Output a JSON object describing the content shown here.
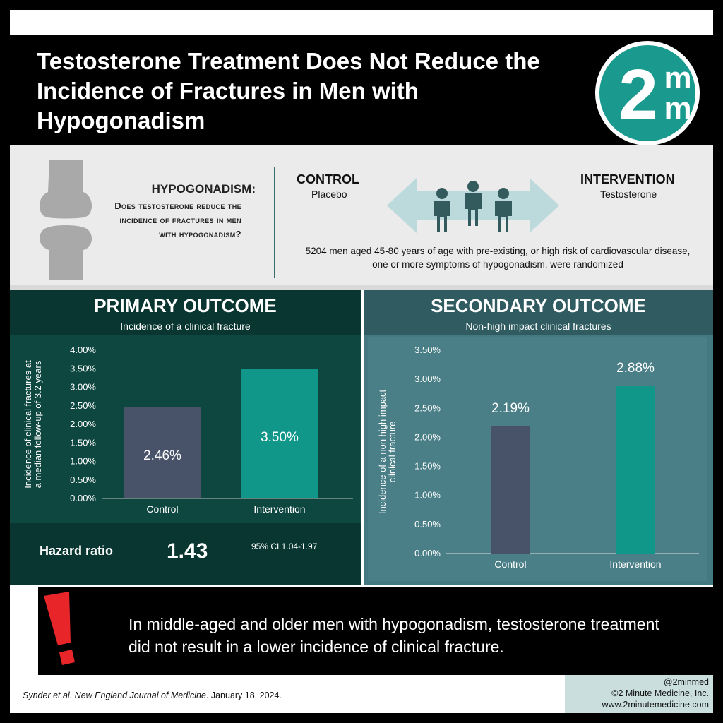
{
  "title": "Testosterone Treatment Does Not Reduce the Incidence of Fractures in Men with Hypogonadism",
  "logo": {
    "text_main": "2",
    "text_top": "m",
    "text_bottom": "m",
    "color": "#1a9a8e"
  },
  "question": {
    "heading": "HYPOGONADISM:",
    "body": "Does testosterone reduce the incidence of fractures in men with hypogonadism?",
    "icon": "bone-joint-icon"
  },
  "design": {
    "control_label": "CONTROL",
    "control_sub": "Placebo",
    "intervention_label": "INTERVENTION",
    "intervention_sub": "Testosterone",
    "population": "5204 men aged 45-80 years of age with pre-existing, or high risk of cardiovascular disease, one or more symptoms of hypogonadism, were randomized",
    "icons": [
      "double-arrow-icon",
      "people-icon"
    ]
  },
  "primary": {
    "title": "PRIMARY OUTCOME",
    "subtitle": "Incidence of a clinical fracture",
    "hazard_label": "Hazard ratio",
    "hazard_value": "1.43",
    "ci": "95% CI 1.04-1.97"
  },
  "secondary": {
    "title": "SECONDARY OUTCOME",
    "subtitle": "Non-high impact clinical fractures"
  },
  "chart_data": [
    {
      "type": "bar",
      "title": "",
      "ylabel": "Incidence of clinical fractures at a median follow-up of 3.2 years",
      "xlabel": "",
      "categories": [
        "Control",
        "Intervention"
      ],
      "values": [
        2.46,
        3.5
      ],
      "data_labels": [
        "2.46%",
        "3.50%"
      ],
      "ylim": [
        0,
        4
      ],
      "yticks": [
        "0.00%",
        "0.50%",
        "1.00%",
        "1.50%",
        "2.00%",
        "2.50%",
        "3.00%",
        "3.50%",
        "4.00%"
      ],
      "colors": [
        "#48536a",
        "#11978a"
      ],
      "grid": false
    },
    {
      "type": "bar",
      "title": "",
      "ylabel": "Incidence of a non high impact clinical fracture",
      "xlabel": "",
      "categories": [
        "Control",
        "Intervention"
      ],
      "values": [
        2.19,
        2.88
      ],
      "data_labels": [
        "2.19%",
        "2.88%"
      ],
      "ylim": [
        0,
        3.5
      ],
      "yticks": [
        "0.00%",
        "0.50%",
        "1.00%",
        "1.50%",
        "2.00%",
        "2.50%",
        "3.00%",
        "3.50%"
      ],
      "colors": [
        "#48536a",
        "#11978a"
      ],
      "grid": false
    }
  ],
  "conclusion": "In middle-aged and older men with hypogonadism, testosterone treatment did not result in a lower incidence of clinical fracture.",
  "warning_icon": "exclamation-icon",
  "citation": {
    "authors": "Synder et al.",
    "journal": "New England Journal of Medicine",
    "date": ". January 18, 2024."
  },
  "credit": {
    "handle": "@2minmed",
    "company": "©2 Minute Medicine, Inc.",
    "url": "www.2minutemedicine.com"
  }
}
